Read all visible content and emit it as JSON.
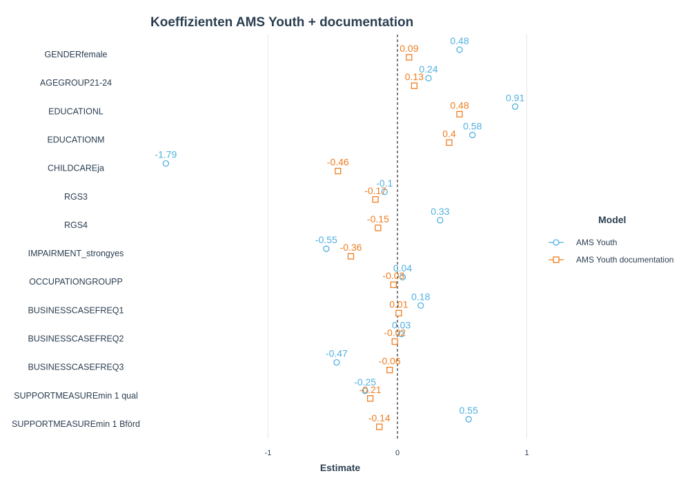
{
  "chart_data": {
    "type": "scatter",
    "title": "Koeffizienten AMS Youth + documentation",
    "xlabel": "Estimate",
    "ylabel": "",
    "xlim": [
      -2,
      2.2
    ],
    "xticks": [
      -1,
      0,
      1
    ],
    "reference_line": 0,
    "grid": "vertical-major",
    "legend": {
      "title": "Model",
      "placement": "right"
    },
    "categories": [
      "GENDERfemale",
      "AGEGROUP21-24",
      "EDUCATIONL",
      "EDUCATIONM",
      "CHILDCAREja",
      "RGS3",
      "RGS4",
      "IMPAIRMENT_strongyes",
      "OCCUPATIONGROUPP",
      "BUSINESSCASEFREQ1",
      "BUSINESSCASEFREQ2",
      "BUSINESSCASEFREQ3",
      "SUPPORTMEASUREmin 1 qual",
      "SUPPORTMEASUREmin 1 Bförd"
    ],
    "series": [
      {
        "name": "AMS Youth",
        "color": "#4fb0e0",
        "marker": "circle",
        "values": [
          0.48,
          0.24,
          0.91,
          0.58,
          -1.79,
          -0.1,
          0.33,
          -0.55,
          0.04,
          0.18,
          0.03,
          -0.47,
          -0.25,
          0.55
        ],
        "labels": [
          "0.48",
          "0.24",
          "0.91",
          "0.58",
          "-1.79",
          "-0.1",
          "0.33",
          "-0.55",
          "0.04",
          "0.18",
          "0.03",
          "-0.47",
          "-0.25",
          "0.55"
        ]
      },
      {
        "name": "AMS Youth documentation",
        "color": "#ee7d1f",
        "marker": "square",
        "values": [
          0.09,
          0.13,
          0.48,
          0.4,
          -0.46,
          -0.17,
          -0.15,
          -0.36,
          -0.03,
          0.01,
          -0.02,
          -0.06,
          -0.21,
          -0.14
        ],
        "labels": [
          "0.09",
          "0.13",
          "0.48",
          "0.4",
          "-0.46",
          "-0.17",
          "-0.15",
          "-0.36",
          "-0.03",
          "0.01",
          "-0.02",
          "-0.06",
          "-0.21",
          "-0.14"
        ]
      }
    ]
  }
}
